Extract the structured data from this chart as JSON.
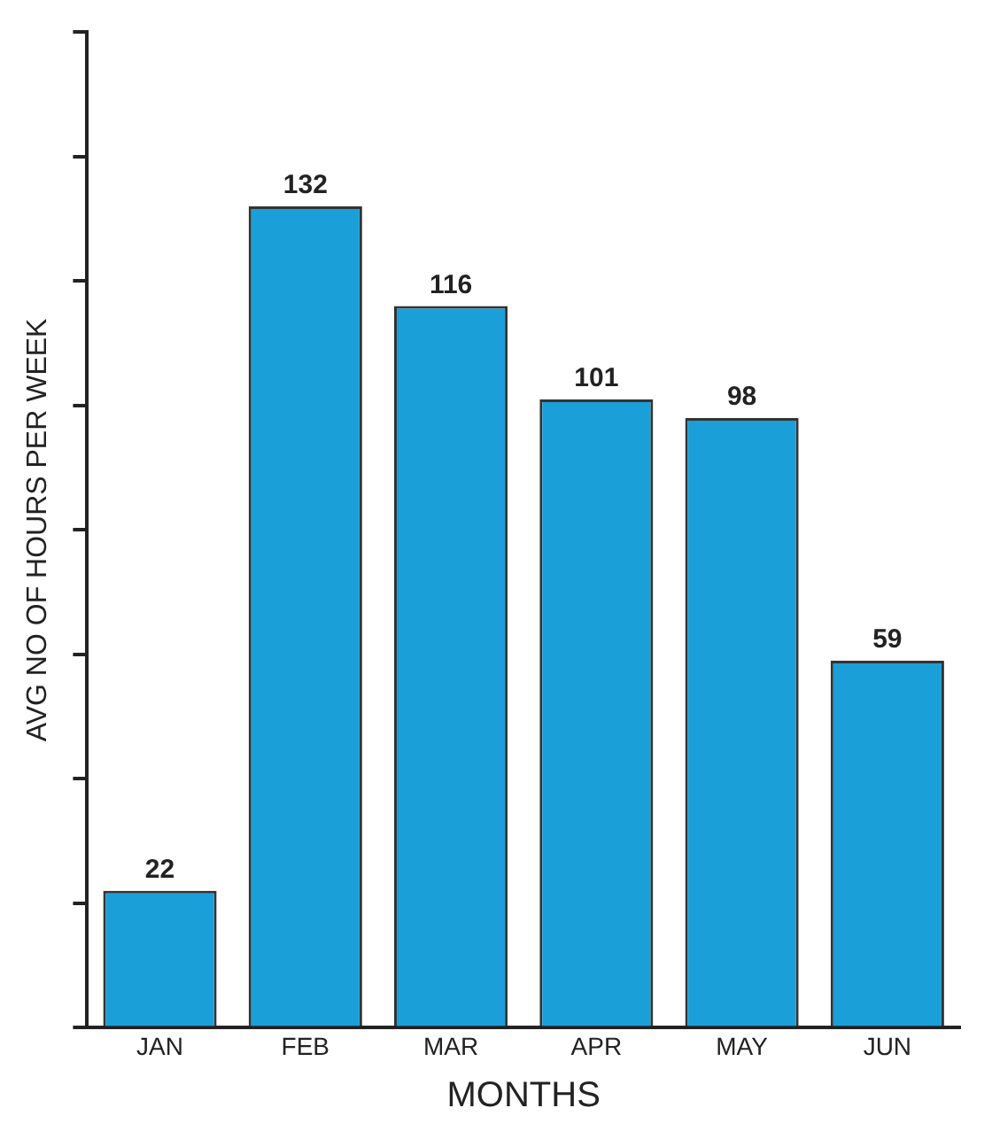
{
  "chart_data": {
    "type": "bar",
    "xlabel": "MONTHS",
    "ylabel": "AVG NO OF HOURS PER WEEK",
    "categories": [
      "JAN",
      "FEB",
      "MAR",
      "APR",
      "MAY",
      "JUN"
    ],
    "values": [
      22,
      132,
      116,
      101,
      98,
      59
    ],
    "color": "#1a9fd8",
    "data_labels": true,
    "ylim": [
      0,
      160
    ],
    "yticks": [
      {
        "value": 0,
        "label": null
      },
      {
        "value": 20,
        "label": null
      },
      {
        "value": 40,
        "label": null
      },
      {
        "value": 60,
        "label": null
      },
      {
        "value": 80,
        "label": null
      },
      {
        "value": 100,
        "label": null
      },
      {
        "value": 120,
        "label": null
      },
      {
        "value": 140,
        "label": null
      },
      {
        "value": 160,
        "label": null
      }
    ],
    "tick_labels": "x",
    "grid": false,
    "legend": false
  }
}
